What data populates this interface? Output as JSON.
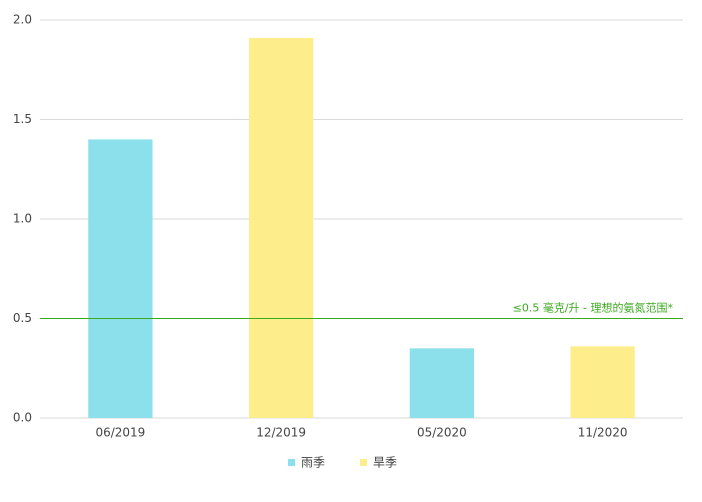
{
  "chart_data": {
    "type": "bar",
    "categories": [
      "06/2019",
      "12/2019",
      "05/2020",
      "11/2020"
    ],
    "series": [
      {
        "name": "雨季",
        "color": "#8ce0ec",
        "values": [
          1.4,
          null,
          0.35,
          null
        ]
      },
      {
        "name": "旱季",
        "color": "#fdee8b",
        "values": [
          null,
          1.91,
          null,
          0.36
        ]
      }
    ],
    "ylim": [
      0,
      2
    ],
    "yticks": [
      {
        "value": 0,
        "label": "0.0"
      },
      0.5,
      {
        "value": 1,
        "label": "1.0"
      },
      1.5,
      {
        "value": 2,
        "label": "2.0"
      }
    ],
    "grid": true,
    "legend": "bottom",
    "reference_line": {
      "value": 0.5,
      "label": "≤0.5 毫克/升 - 理想的氨氮范围*",
      "color": "#3aaa1e"
    }
  }
}
